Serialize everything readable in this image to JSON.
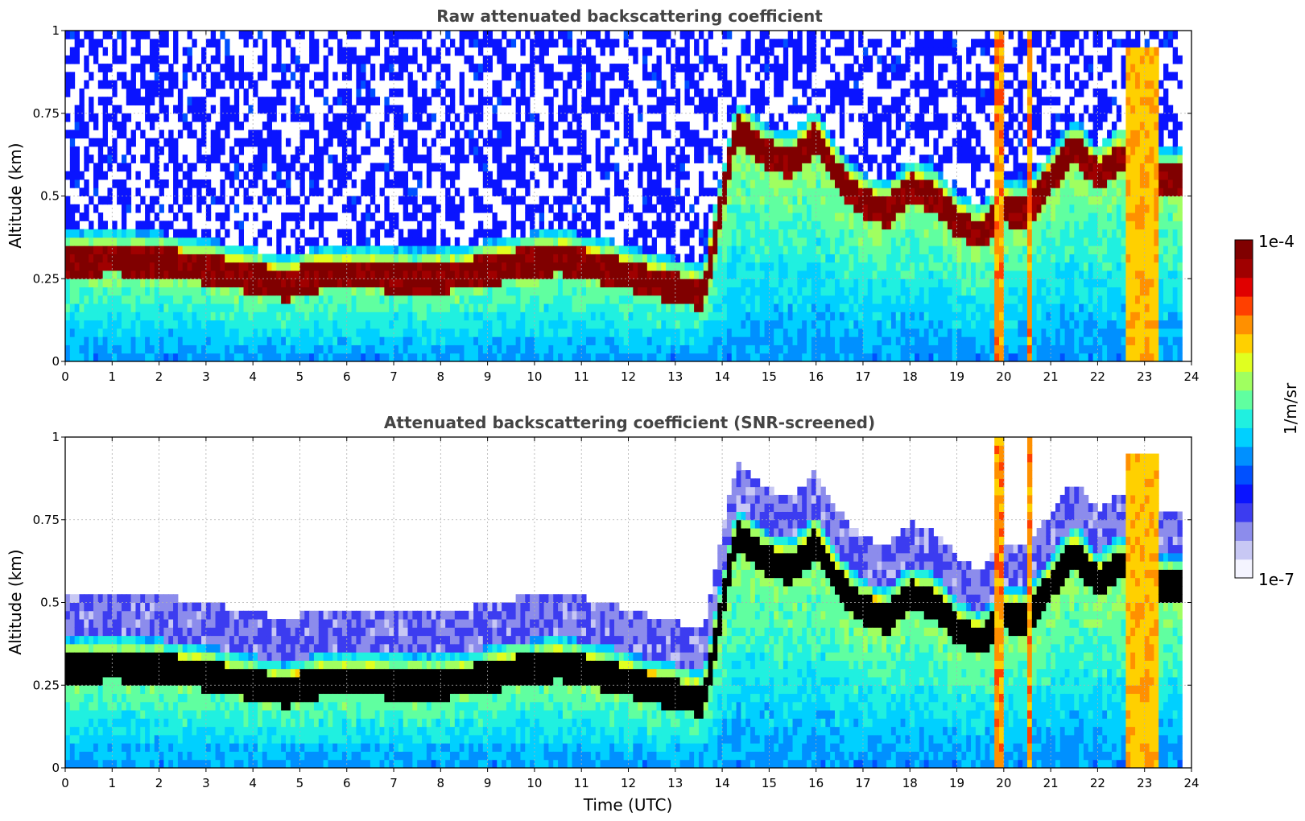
{
  "figure_title": "",
  "colorbar": {
    "top_label": "1e-4",
    "bottom_label": "1e-7",
    "unit": "1/m/sr",
    "colors": [
      "#f4f4ff",
      "#c8c8f4",
      "#8c8cec",
      "#3c3cf0",
      "#0a14ff",
      "#0050ff",
      "#0090ff",
      "#00d0ff",
      "#20f0e0",
      "#60ffa0",
      "#a0ff60",
      "#e0ff20",
      "#ffd000",
      "#ff9000",
      "#ff4000",
      "#e00000",
      "#a00000",
      "#800000"
    ]
  },
  "chart_data": [
    {
      "type": "heatmap",
      "title": "Raw attenuated backscattering coefficient",
      "xlabel": "",
      "ylabel": "Altitude (km)",
      "xlim": [
        0,
        24
      ],
      "ylim": [
        0,
        1
      ],
      "x_ticks": [
        "0",
        "1",
        "2",
        "3",
        "4",
        "5",
        "6",
        "7",
        "8",
        "9",
        "10",
        "11",
        "12",
        "13",
        "14",
        "15",
        "16",
        "17",
        "18",
        "19",
        "20",
        "21",
        "22",
        "23",
        "24"
      ],
      "y_ticks": [
        "0",
        "0.25",
        "0.5",
        "0.75",
        "1"
      ],
      "grid": true,
      "data_end_hour": 23.8,
      "layer_altitude_km": [
        [
          0.0,
          0.3
        ],
        [
          1.0,
          0.31
        ],
        [
          2.0,
          0.3
        ],
        [
          3.0,
          0.28
        ],
        [
          4.0,
          0.25
        ],
        [
          4.7,
          0.23
        ],
        [
          5.5,
          0.26
        ],
        [
          6.5,
          0.26
        ],
        [
          7.5,
          0.25
        ],
        [
          8.5,
          0.26
        ],
        [
          9.5,
          0.29
        ],
        [
          10.5,
          0.31
        ],
        [
          11.5,
          0.28
        ],
        [
          12.5,
          0.24
        ],
        [
          13.6,
          0.2
        ],
        [
          14.3,
          0.7
        ],
        [
          15.0,
          0.62
        ],
        [
          15.5,
          0.6
        ],
        [
          16.0,
          0.68
        ],
        [
          16.5,
          0.55
        ],
        [
          17.0,
          0.48
        ],
        [
          17.5,
          0.45
        ],
        [
          18.0,
          0.52
        ],
        [
          18.5,
          0.5
        ],
        [
          19.0,
          0.42
        ],
        [
          19.5,
          0.38
        ],
        [
          20.0,
          0.46
        ],
        [
          20.5,
          0.45
        ],
        [
          21.0,
          0.55
        ],
        [
          21.5,
          0.65
        ],
        [
          22.0,
          0.56
        ],
        [
          22.5,
          0.62
        ],
        [
          23.0,
          0.55
        ]
      ],
      "value_range": [
        "1e-7",
        "1e-4"
      ]
    },
    {
      "type": "heatmap",
      "title": "Attenuated backscattering coefficient (SNR-screened)",
      "xlabel": "Time (UTC)",
      "ylabel": "Altitude (km)",
      "xlim": [
        0,
        24
      ],
      "ylim": [
        0,
        1
      ],
      "x_ticks": [
        "0",
        "1",
        "2",
        "3",
        "4",
        "5",
        "6",
        "7",
        "8",
        "9",
        "10",
        "11",
        "12",
        "13",
        "14",
        "15",
        "16",
        "17",
        "18",
        "19",
        "20",
        "21",
        "22",
        "23",
        "24"
      ],
      "y_ticks": [
        "0",
        "0.25",
        "0.5",
        "0.75",
        "1"
      ],
      "grid": true,
      "data_end_hour": 23.8,
      "saturated_color": "#000000",
      "value_range": [
        "1e-7",
        "1e-4"
      ]
    }
  ]
}
